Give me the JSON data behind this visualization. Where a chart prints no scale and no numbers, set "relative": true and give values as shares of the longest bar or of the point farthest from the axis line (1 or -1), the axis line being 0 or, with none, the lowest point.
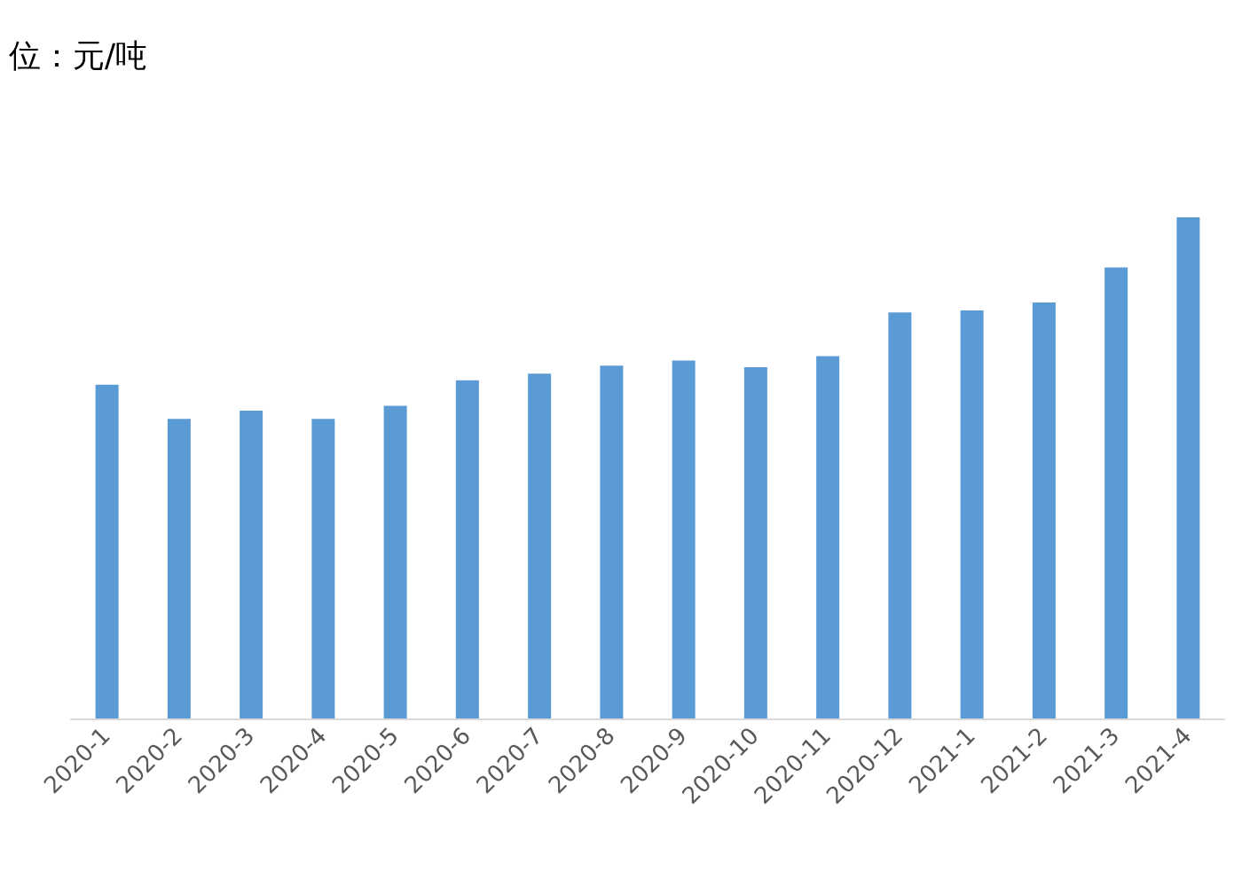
{
  "chart_data": {
    "type": "bar",
    "title": "位：元/吨",
    "relative": true,
    "color": "#5b9bd5",
    "categories": [
      "2020-1",
      "2020-2",
      "2020-3",
      "2020-4",
      "2020-5",
      "2020-6",
      "2020-7",
      "2020-8",
      "2020-9",
      "2020-10",
      "2020-11",
      "2020-12",
      "2021-1",
      "2021-2",
      "2021-3",
      "2021-4"
    ],
    "values": [
      0.666,
      0.598,
      0.614,
      0.598,
      0.624,
      0.675,
      0.688,
      0.704,
      0.714,
      0.701,
      0.723,
      0.81,
      0.814,
      0.83,
      0.9,
      1
    ]
  }
}
